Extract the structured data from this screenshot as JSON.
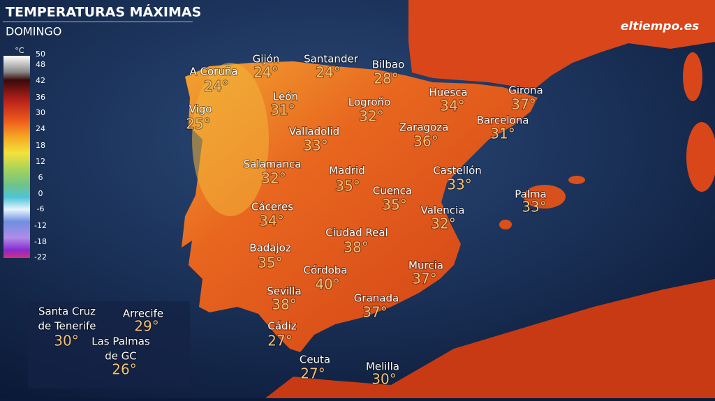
{
  "header": {
    "title": "TEMPERATURAS MÁXIMAS",
    "subtitle": "DOMINGO",
    "logo": "eltiempo.es"
  },
  "legend": {
    "unit": "°C",
    "ticks": [
      50,
      48,
      42,
      36,
      30,
      24,
      18,
      12,
      6,
      0,
      -6,
      -12,
      -18,
      -22
    ]
  },
  "cities": [
    {
      "name": "A Coruña",
      "temp": "24°"
    },
    {
      "name": "Gijón",
      "temp": "24°"
    },
    {
      "name": "Santander",
      "temp": "24°"
    },
    {
      "name": "Bilbao",
      "temp": "28°"
    },
    {
      "name": "Vigo",
      "temp": "25°"
    },
    {
      "name": "León",
      "temp": "31°"
    },
    {
      "name": "Logroño",
      "temp": "32°"
    },
    {
      "name": "Huesca",
      "temp": "34°"
    },
    {
      "name": "Girona",
      "temp": "37°"
    },
    {
      "name": "Barcelona",
      "temp": "31°"
    },
    {
      "name": "Zaragoza",
      "temp": "36°"
    },
    {
      "name": "Valladolid",
      "temp": "33°"
    },
    {
      "name": "Salamanca",
      "temp": "32°"
    },
    {
      "name": "Madrid",
      "temp": "35°"
    },
    {
      "name": "Castellón",
      "temp": "33°"
    },
    {
      "name": "Cuenca",
      "temp": "35°"
    },
    {
      "name": "Palma",
      "temp": "33°"
    },
    {
      "name": "Cáceres",
      "temp": "34°"
    },
    {
      "name": "Valencia",
      "temp": "32°"
    },
    {
      "name": "Ciudad Real",
      "temp": "38°"
    },
    {
      "name": "Badajoz",
      "temp": "35°"
    },
    {
      "name": "Murcia",
      "temp": "37°"
    },
    {
      "name": "Córdoba",
      "temp": "40°"
    },
    {
      "name": "Sevilla",
      "temp": "38°"
    },
    {
      "name": "Granada",
      "temp": "37°"
    },
    {
      "name": "Cádiz",
      "temp": "27°"
    },
    {
      "name": "Ceuta",
      "temp": "27°"
    },
    {
      "name": "Melilla",
      "temp": "30°"
    }
  ],
  "canarias": [
    {
      "name": [
        "Santa Cruz",
        "de Tenerife"
      ],
      "temp": "30°"
    },
    {
      "name": [
        "Arrecife"
      ],
      "temp": "29°"
    },
    {
      "name": [
        "Las Palmas",
        "de GC"
      ],
      "temp": "26°"
    }
  ]
}
